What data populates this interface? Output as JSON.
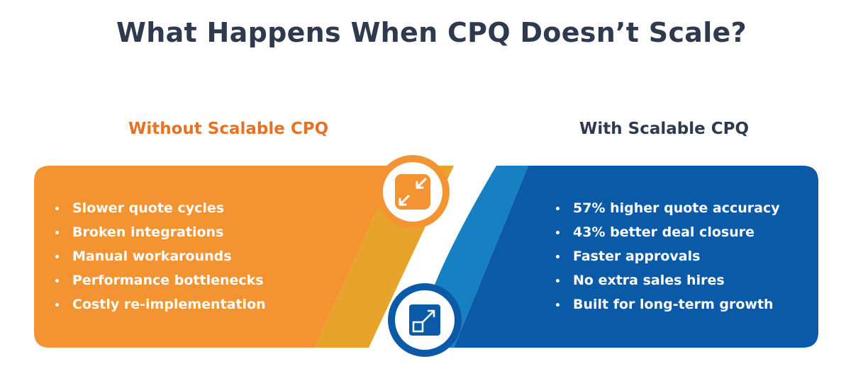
{
  "title": "What Happens When CPQ Doesn’t Scale?",
  "left_panel": {
    "heading": "Without Scalable CPQ",
    "icon": "shrink-arrows-icon",
    "items": [
      "Slower quote cycles",
      "Broken integrations",
      "Manual workarounds",
      "Performance bottlenecks",
      "Costly re-implementation"
    ]
  },
  "right_panel": {
    "heading": "With Scalable CPQ",
    "icon": "expand-arrow-icon",
    "items": [
      "57% higher quote accuracy",
      "43% better deal closure",
      "Faster approvals",
      "No extra sales hires",
      "Built for long-term growth"
    ]
  },
  "colors": {
    "title": "#2f3a4e",
    "orange": "#f39332",
    "orange_accent": "#e57227",
    "yellow": "#e8a42a",
    "blue": "#0b5aa8",
    "blue_light": "#1a7fc4"
  }
}
